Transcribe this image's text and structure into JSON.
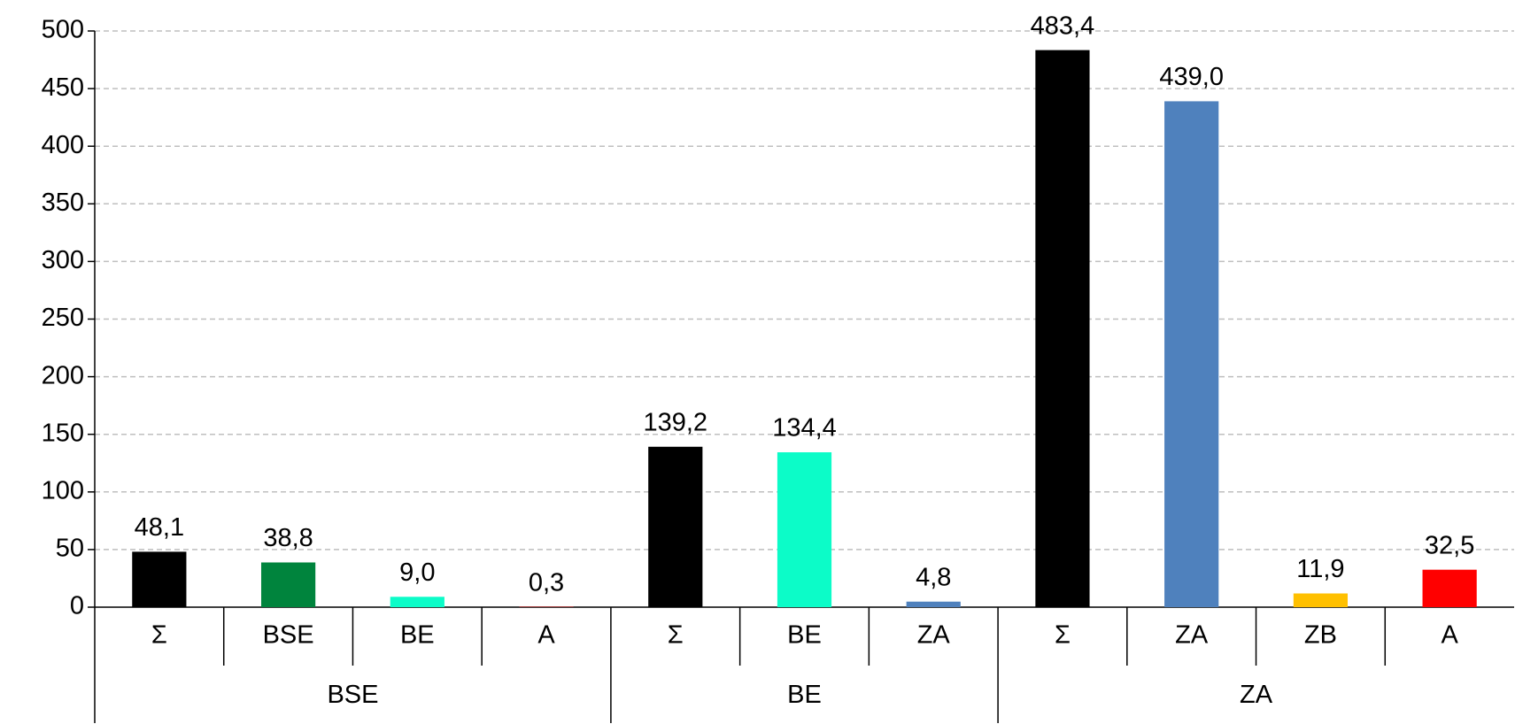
{
  "chart_data": {
    "type": "bar",
    "groups": [
      {
        "name": "BSE",
        "categories": [
          "Σ",
          "BSE",
          "BE",
          "A"
        ],
        "values": [
          48.1,
          38.8,
          9.0,
          0.3
        ],
        "value_labels": [
          "48,1",
          "38,8",
          "9,0",
          "0,3"
        ],
        "colors": [
          "#000000",
          "#00843d",
          "#0cfcc8",
          "#ff0000"
        ]
      },
      {
        "name": "BE",
        "categories": [
          "Σ",
          "BE",
          "ZA"
        ],
        "values": [
          139.2,
          134.4,
          4.8
        ],
        "value_labels": [
          "139,2",
          "134,4",
          "4,8"
        ],
        "colors": [
          "#000000",
          "#0cfcc8",
          "#4f81bd"
        ]
      },
      {
        "name": "ZA",
        "categories": [
          "Σ",
          "ZA",
          "ZB",
          "A"
        ],
        "values": [
          483.4,
          439.0,
          11.9,
          32.5
        ],
        "value_labels": [
          "483,4",
          "439,0",
          "11,9",
          "32,5"
        ],
        "colors": [
          "#000000",
          "#4f81bd",
          "#ffc000",
          "#ff0000"
        ]
      }
    ],
    "ylim": [
      0,
      500
    ],
    "yticks": [
      0,
      50,
      100,
      150,
      200,
      250,
      300,
      350,
      400,
      450,
      500
    ],
    "grid": true
  }
}
